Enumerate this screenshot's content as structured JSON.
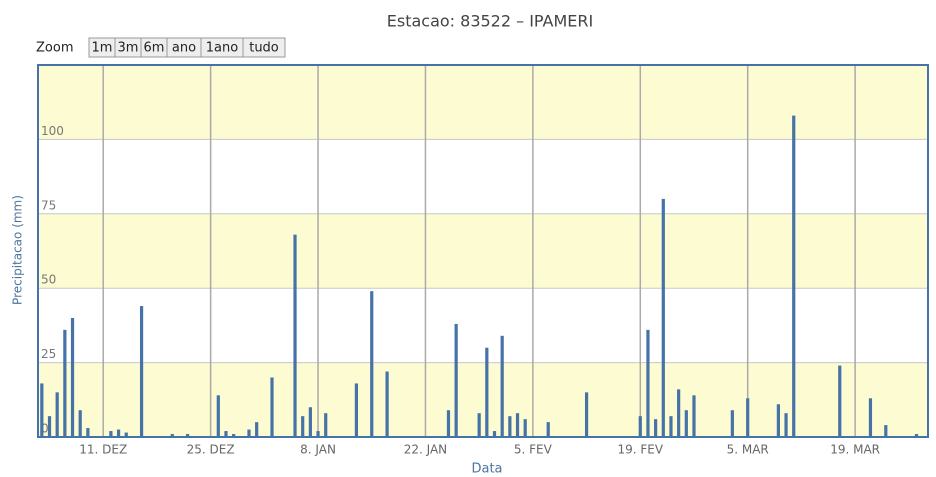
{
  "chart_data": {
    "type": "bar",
    "title": "Estacao: 83522 – IPAMERI",
    "zoom_label": "Zoom",
    "zoom_buttons": [
      "1m",
      "3m",
      "6m",
      "ano",
      "1ano",
      "tudo"
    ],
    "x_label": "Data",
    "y_label": "Precipitacao (mm)",
    "color": "#4572a7",
    "band_color": "#fcfbd2",
    "grid": true,
    "ylim": [
      0,
      125
    ],
    "yticks": [
      0,
      25,
      50,
      75,
      100
    ],
    "categories": [
      null,
      null,
      null,
      null,
      null,
      null,
      null,
      null,
      "11. DEZ",
      null,
      null,
      null,
      null,
      null,
      null,
      null,
      null,
      null,
      null,
      null,
      null,
      null,
      "25. DEZ",
      null,
      null,
      null,
      null,
      null,
      null,
      null,
      null,
      null,
      null,
      null,
      null,
      null,
      "8. JAN",
      null,
      null,
      null,
      null,
      null,
      null,
      null,
      null,
      null,
      null,
      null,
      null,
      null,
      "22. JAN",
      null,
      null,
      null,
      null,
      null,
      null,
      null,
      null,
      null,
      null,
      null,
      null,
      null,
      "5. FEV",
      null,
      null,
      null,
      null,
      null,
      null,
      null,
      null,
      null,
      null,
      null,
      null,
      null,
      "19. FEV",
      null,
      null,
      null,
      null,
      null,
      null,
      null,
      null,
      null,
      null,
      null,
      null,
      null,
      "5. MAR",
      null,
      null,
      null,
      null,
      null,
      null,
      null,
      null,
      null,
      null,
      null,
      null,
      null,
      "19. MAR",
      null,
      null,
      null,
      null,
      null,
      null,
      null,
      null,
      null
    ],
    "values": [
      18,
      7,
      15,
      36,
      40,
      9,
      3,
      0,
      0,
      2,
      2.5,
      1.5,
      0,
      44,
      0,
      0,
      0,
      1,
      0,
      1,
      0,
      0,
      0,
      14,
      2,
      1,
      0,
      2.5,
      5,
      0,
      20,
      0,
      0,
      68,
      7,
      10,
      2,
      8,
      0,
      0,
      0,
      18,
      0,
      49,
      0,
      22,
      0,
      0,
      0,
      0,
      0,
      0,
      0,
      9,
      38,
      0,
      0,
      8,
      30,
      2,
      34,
      7,
      8,
      6,
      0,
      0,
      5,
      0,
      0,
      0,
      0,
      15,
      0,
      0,
      0,
      0,
      0,
      0,
      7,
      36,
      6,
      80,
      7,
      16,
      9,
      14,
      0,
      0,
      0,
      0,
      9,
      0,
      13,
      0,
      0,
      0,
      11,
      8,
      108,
      0,
      0,
      0,
      0,
      0,
      24,
      0,
      0,
      0,
      13,
      0,
      4,
      0,
      0,
      0,
      1,
      0
    ]
  }
}
